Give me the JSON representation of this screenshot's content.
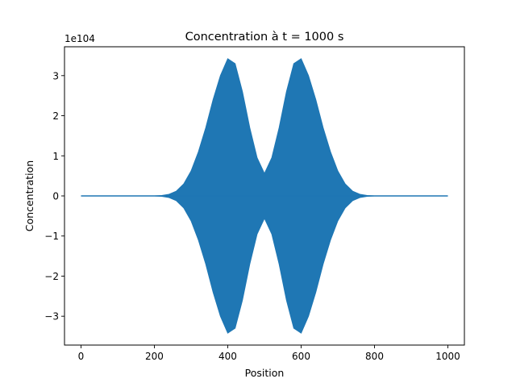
{
  "chart_data": {
    "type": "line",
    "title": "Concentration à t = 1000 s",
    "xlabel": "Position",
    "ylabel": "Concentration",
    "offset_label": "1e104",
    "xlim": [
      -45,
      1045
    ],
    "ylim": [
      -3.72,
      3.72
    ],
    "xticks": [
      0,
      200,
      400,
      600,
      800,
      1000
    ],
    "xtick_labels": [
      "0",
      "200",
      "400",
      "600",
      "800",
      "1000"
    ],
    "yticks": [
      -3,
      -2,
      -1,
      0,
      1,
      2,
      3
    ],
    "ytick_labels": [
      "−3",
      "−2",
      "−1",
      "0",
      "1",
      "2",
      "3"
    ],
    "grid": false,
    "color": "#1f77b4",
    "envelope": {
      "x": [
        0,
        200,
        220,
        240,
        260,
        280,
        300,
        320,
        340,
        360,
        380,
        400,
        420,
        440,
        460,
        480,
        500,
        520,
        540,
        560,
        580,
        600,
        620,
        640,
        660,
        680,
        700,
        720,
        740,
        760,
        780,
        800,
        1000
      ],
      "y": [
        0,
        0,
        0.01,
        0.04,
        0.12,
        0.3,
        0.62,
        1.1,
        1.7,
        2.4,
        3.0,
        3.42,
        3.3,
        2.6,
        1.7,
        0.95,
        0.56,
        0.95,
        1.7,
        2.6,
        3.3,
        3.42,
        3.0,
        2.4,
        1.7,
        1.1,
        0.62,
        0.3,
        0.12,
        0.04,
        0.01,
        0,
        0
      ]
    }
  }
}
